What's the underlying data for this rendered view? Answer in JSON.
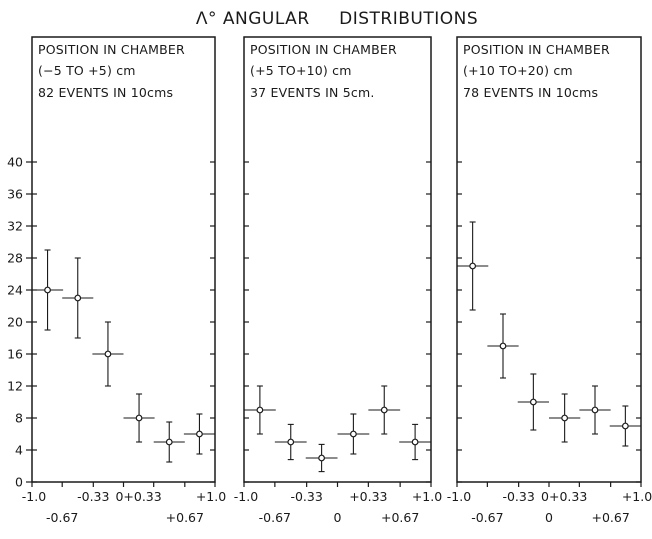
{
  "title": "Λ° ANGULAR     DISTRIBUTIONS",
  "chart_data": [
    {
      "type": "scatter",
      "panel_labels": [
        "POSITION IN CHAMBER",
        "(−5 TO +5) cm",
        "82 EVENTS IN 10cms"
      ],
      "x_tick_labels_upper": [
        "-1.0",
        "-0.33",
        "0+0.33",
        "+1.0"
      ],
      "x_tick_labels_lower": [
        "-0.67",
        "+0.67"
      ],
      "y_ticks": [
        0,
        4,
        8,
        12,
        16,
        20,
        24,
        28,
        32,
        36,
        40
      ],
      "xlim": [
        -1.0,
        1.0
      ],
      "ylim": [
        0,
        46
      ],
      "points": [
        {
          "x": -0.83,
          "y": 24,
          "xerr": 0.17,
          "yerr_low": 5,
          "yerr_high": 5
        },
        {
          "x": -0.5,
          "y": 23,
          "xerr": 0.17,
          "yerr_low": 5,
          "yerr_high": 5
        },
        {
          "x": -0.17,
          "y": 16,
          "xerr": 0.17,
          "yerr_low": 4,
          "yerr_high": 4
        },
        {
          "x": 0.17,
          "y": 8,
          "xerr": 0.17,
          "yerr_low": 3,
          "yerr_high": 3
        },
        {
          "x": 0.5,
          "y": 5,
          "xerr": 0.17,
          "yerr_low": 2.5,
          "yerr_high": 2.5
        },
        {
          "x": 0.83,
          "y": 6,
          "xerr": 0.17,
          "yerr_low": 2.5,
          "yerr_high": 2.5
        }
      ]
    },
    {
      "type": "scatter",
      "panel_labels": [
        "POSITION IN CHAMBER",
        "(+5 TO+10) cm",
        "37 EVENTS IN 5cm."
      ],
      "x_tick_labels_upper": [
        "-1.0",
        "-0.33",
        "+0.33",
        "+1.0"
      ],
      "x_tick_labels_lower": [
        "-0.67",
        "0",
        "+0.67"
      ],
      "xlim": [
        -1.0,
        1.0
      ],
      "ylim": [
        0,
        46
      ],
      "points": [
        {
          "x": -0.83,
          "y": 9,
          "xerr": 0.17,
          "yerr_low": 3,
          "yerr_high": 3
        },
        {
          "x": -0.5,
          "y": 5,
          "xerr": 0.17,
          "yerr_low": 2.2,
          "yerr_high": 2.2
        },
        {
          "x": -0.17,
          "y": 3,
          "xerr": 0.17,
          "yerr_low": 1.7,
          "yerr_high": 1.7
        },
        {
          "x": 0.17,
          "y": 6,
          "xerr": 0.17,
          "yerr_low": 2.5,
          "yerr_high": 2.5
        },
        {
          "x": 0.5,
          "y": 9,
          "xerr": 0.17,
          "yerr_low": 3,
          "yerr_high": 3
        },
        {
          "x": 0.83,
          "y": 5,
          "xerr": 0.17,
          "yerr_low": 2.2,
          "yerr_high": 2.2
        }
      ]
    },
    {
      "type": "scatter",
      "panel_labels": [
        "POSITION IN CHAMBER",
        "(+10 TO+20) cm",
        "78 EVENTS IN 10cms"
      ],
      "x_tick_labels_upper": [
        "-1.0",
        "-0.33",
        "0+0.33",
        "+1.0"
      ],
      "x_tick_labels_lower": [
        "-0.67",
        "0",
        "+0.67"
      ],
      "xlim": [
        -1.0,
        1.0
      ],
      "ylim": [
        0,
        46
      ],
      "points": [
        {
          "x": -0.83,
          "y": 27,
          "xerr": 0.17,
          "yerr_low": 5.5,
          "yerr_high": 5.5
        },
        {
          "x": -0.5,
          "y": 17,
          "xerr": 0.17,
          "yerr_low": 4,
          "yerr_high": 4
        },
        {
          "x": -0.17,
          "y": 10,
          "xerr": 0.17,
          "yerr_low": 3.5,
          "yerr_high": 3.5
        },
        {
          "x": 0.17,
          "y": 8,
          "xerr": 0.17,
          "yerr_low": 3,
          "yerr_high": 3
        },
        {
          "x": 0.5,
          "y": 9,
          "xerr": 0.17,
          "yerr_low": 3,
          "yerr_high": 3
        },
        {
          "x": 0.83,
          "y": 7,
          "xerr": 0.17,
          "yerr_low": 2.5,
          "yerr_high": 2.5
        }
      ]
    }
  ]
}
